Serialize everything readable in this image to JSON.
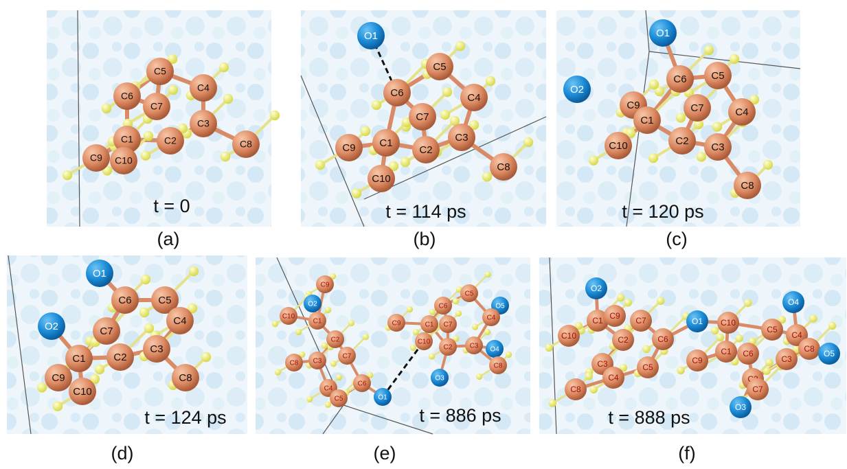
{
  "panels": [
    {
      "label": "(a)",
      "time": "t = 0",
      "atoms": [
        "C5",
        "C4",
        "C6",
        "C7",
        "C3",
        "C2",
        "C1",
        "C8",
        "C9",
        "C10"
      ]
    },
    {
      "label": "(b)",
      "time": "t = 114 ps",
      "atoms": [
        "O1",
        "C5",
        "C6",
        "C4",
        "C7",
        "C3",
        "C1",
        "C2",
        "C9",
        "C8",
        "C10"
      ]
    },
    {
      "label": "(c)",
      "time": "t = 120 ps",
      "atoms": [
        "O1",
        "O2",
        "C6",
        "C5",
        "C7",
        "C4",
        "C9",
        "C1",
        "C2",
        "C3",
        "C10",
        "C8"
      ]
    },
    {
      "label": "(d)",
      "time": "t = 124 ps",
      "atoms": [
        "O1",
        "C6",
        "C5",
        "O2",
        "C7",
        "C4",
        "C3",
        "C2",
        "C1",
        "C9",
        "C10",
        "C8"
      ]
    },
    {
      "label": "(e)",
      "time": "t = 886 ps",
      "atoms": [
        "C9",
        "O2",
        "C10",
        "C1",
        "C2",
        "C8",
        "C3",
        "C7",
        "C4",
        "C5",
        "C6",
        "O1",
        "C5",
        "O5",
        "C6",
        "C4",
        "C9",
        "C1",
        "C7",
        "C10",
        "C2",
        "C3",
        "O4",
        "C8",
        "O3"
      ]
    },
    {
      "label": "(f)",
      "time": "t = 888 ps",
      "atoms": [
        "O2",
        "O4",
        "C1",
        "C9",
        "C7",
        "C10",
        "C2",
        "C6",
        "O1",
        "C10",
        "C5",
        "C4",
        "C8",
        "O5",
        "C3",
        "C4",
        "C5",
        "C9",
        "C1",
        "C6",
        "C3",
        "C2",
        "C7",
        "C8",
        "O3"
      ]
    }
  ]
}
